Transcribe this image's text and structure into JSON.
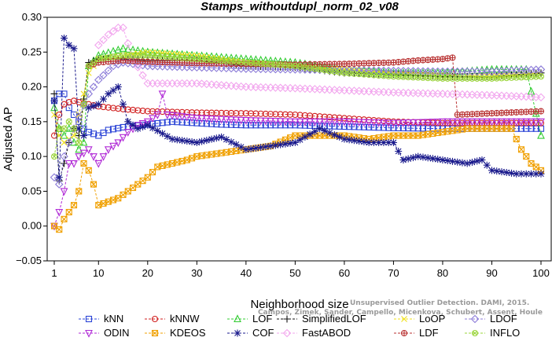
{
  "chart_data": {
    "type": "line",
    "title": "Stamps_withoutdupl_norm_02_v08",
    "xlabel": "Neighborhood size",
    "ylabel": "Adjusted AP",
    "xlim": [
      1,
      100
    ],
    "ylim": [
      -0.05,
      0.3
    ],
    "x_ticks": [
      1,
      10,
      20,
      30,
      40,
      50,
      60,
      70,
      80,
      90,
      100
    ],
    "y_ticks": [
      -0.05,
      0.0,
      0.05,
      0.1,
      0.15,
      0.2,
      0.25,
      0.3
    ],
    "y_tick_labels": [
      "−0.05",
      "0.00",
      "0.05",
      "0.10",
      "0.15",
      "0.20",
      "0.25",
      "0.30"
    ],
    "grid": false,
    "legend_position": "bottom",
    "watermark": [
      "Campos, Zimek, Sander, Campello, Micenkova, Schubert, Assent, Houle",
      "Unsupervised Outlier Detection. DAMI, 2015."
    ],
    "series": [
      {
        "name": "kNN",
        "color": "#2b44d6",
        "marker": "square",
        "points": [
          [
            1,
            0.18
          ],
          [
            2,
            0.19
          ],
          [
            3,
            0.19
          ],
          [
            4,
            0.17
          ],
          [
            5,
            0.16
          ],
          [
            6,
            0.15
          ],
          [
            7,
            0.14
          ],
          [
            8,
            0.135
          ],
          [
            10,
            0.13
          ],
          [
            12,
            0.138
          ],
          [
            15,
            0.142
          ],
          [
            20,
            0.146
          ],
          [
            25,
            0.15
          ],
          [
            30,
            0.148
          ],
          [
            35,
            0.146
          ],
          [
            40,
            0.145
          ],
          [
            50,
            0.145
          ],
          [
            60,
            0.143
          ],
          [
            70,
            0.141
          ],
          [
            80,
            0.14
          ],
          [
            90,
            0.14
          ],
          [
            100,
            0.14
          ]
        ]
      },
      {
        "name": "kNNW",
        "color": "#d11f1f",
        "marker": "circle",
        "points": [
          [
            1,
            0.13
          ],
          [
            2,
            0.16
          ],
          [
            3,
            0.175
          ],
          [
            4,
            0.178
          ],
          [
            5,
            0.18
          ],
          [
            6,
            0.178
          ],
          [
            8,
            0.175
          ],
          [
            10,
            0.172
          ],
          [
            15,
            0.168
          ],
          [
            20,
            0.165
          ],
          [
            30,
            0.163
          ],
          [
            40,
            0.162
          ],
          [
            50,
            0.16
          ],
          [
            60,
            0.155
          ],
          [
            70,
            0.15
          ],
          [
            80,
            0.148
          ],
          [
            90,
            0.148
          ],
          [
            100,
            0.148
          ]
        ]
      },
      {
        "name": "LOF",
        "color": "#33cc33",
        "marker": "triangle-up",
        "points": [
          [
            1,
            0.17
          ],
          [
            2,
            0.14
          ],
          [
            3,
            0.13
          ],
          [
            4,
            0.14
          ],
          [
            5,
            0.12
          ],
          [
            6,
            0.11
          ],
          [
            7,
            0.12
          ],
          [
            8,
            0.23
          ],
          [
            10,
            0.245
          ],
          [
            15,
            0.255
          ],
          [
            20,
            0.25
          ],
          [
            30,
            0.245
          ],
          [
            40,
            0.24
          ],
          [
            50,
            0.235
          ],
          [
            60,
            0.225
          ],
          [
            70,
            0.22
          ],
          [
            80,
            0.22
          ],
          [
            90,
            0.225
          ],
          [
            97,
            0.225
          ],
          [
            100,
            0.13
          ]
        ]
      },
      {
        "name": "SimplifiedLOF",
        "color": "#111111",
        "marker": "plus",
        "points": [
          [
            1,
            0.19
          ],
          [
            2,
            0.065
          ],
          [
            3,
            0.09
          ],
          [
            4,
            0.12
          ],
          [
            5,
            0.14
          ],
          [
            6,
            0.13
          ],
          [
            8,
            0.235
          ],
          [
            10,
            0.24
          ],
          [
            15,
            0.24
          ],
          [
            20,
            0.238
          ],
          [
            30,
            0.238
          ],
          [
            40,
            0.23
          ],
          [
            50,
            0.228
          ],
          [
            60,
            0.22
          ],
          [
            70,
            0.218
          ],
          [
            80,
            0.215
          ],
          [
            90,
            0.215
          ],
          [
            100,
            0.22
          ]
        ]
      },
      {
        "name": "LoOP",
        "color": "#f0e01a",
        "marker": "x",
        "points": [
          [
            1,
            0.16
          ],
          [
            2,
            0.13
          ],
          [
            3,
            0.12
          ],
          [
            5,
            0.13
          ],
          [
            8,
            0.22
          ],
          [
            10,
            0.24
          ],
          [
            15,
            0.245
          ],
          [
            20,
            0.25
          ],
          [
            30,
            0.245
          ],
          [
            40,
            0.235
          ],
          [
            50,
            0.23
          ],
          [
            60,
            0.225
          ],
          [
            70,
            0.22
          ],
          [
            80,
            0.218
          ],
          [
            90,
            0.215
          ],
          [
            100,
            0.22
          ]
        ]
      },
      {
        "name": "LDOF",
        "color": "#8c7cd8",
        "marker": "diamond",
        "points": [
          [
            1,
            0.07
          ],
          [
            2,
            0.06
          ],
          [
            3,
            0.1
          ],
          [
            5,
            0.14
          ],
          [
            8,
            0.19
          ],
          [
            10,
            0.21
          ],
          [
            13,
            0.23
          ],
          [
            15,
            0.235
          ],
          [
            20,
            0.23
          ],
          [
            30,
            0.228
          ],
          [
            40,
            0.226
          ],
          [
            50,
            0.225
          ],
          [
            60,
            0.224
          ],
          [
            70,
            0.223
          ],
          [
            80,
            0.222
          ],
          [
            90,
            0.222
          ],
          [
            100,
            0.225
          ]
        ]
      },
      {
        "name": "ODIN",
        "color": "#b02ad6",
        "marker": "triangle-down",
        "points": [
          [
            1,
            0.0
          ],
          [
            2,
            0.02
          ],
          [
            3,
            0.05
          ],
          [
            4,
            0.09
          ],
          [
            5,
            0.09
          ],
          [
            6,
            0.1
          ],
          [
            8,
            0.11
          ],
          [
            9,
            0.1
          ],
          [
            10,
            0.09
          ],
          [
            12,
            0.11
          ],
          [
            14,
            0.12
          ],
          [
            16,
            0.135
          ],
          [
            18,
            0.145
          ],
          [
            20,
            0.15
          ],
          [
            22,
            0.16
          ],
          [
            23,
            0.19
          ],
          [
            24,
            0.16
          ],
          [
            30,
            0.155
          ],
          [
            40,
            0.152
          ],
          [
            50,
            0.15
          ],
          [
            60,
            0.15
          ],
          [
            70,
            0.148
          ],
          [
            80,
            0.15
          ],
          [
            90,
            0.15
          ],
          [
            100,
            0.15
          ]
        ]
      },
      {
        "name": "KDEOS",
        "color": "#f0a000",
        "marker": "square-x",
        "points": [
          [
            1,
            0.0
          ],
          [
            2,
            -0.005
          ],
          [
            3,
            0.01
          ],
          [
            4,
            0.02
          ],
          [
            5,
            0.03
          ],
          [
            6,
            0.05
          ],
          [
            7,
            0.09
          ],
          [
            8,
            0.08
          ],
          [
            9,
            0.06
          ],
          [
            10,
            0.03
          ],
          [
            12,
            0.035
          ],
          [
            14,
            0.04
          ],
          [
            16,
            0.05
          ],
          [
            18,
            0.06
          ],
          [
            20,
            0.07
          ],
          [
            22,
            0.085
          ],
          [
            25,
            0.09
          ],
          [
            28,
            0.095
          ],
          [
            30,
            0.1
          ],
          [
            35,
            0.105
          ],
          [
            40,
            0.11
          ],
          [
            45,
            0.115
          ],
          [
            50,
            0.13
          ],
          [
            55,
            0.13
          ],
          [
            60,
            0.13
          ],
          [
            65,
            0.125
          ],
          [
            70,
            0.13
          ],
          [
            75,
            0.13
          ],
          [
            80,
            0.135
          ],
          [
            85,
            0.14
          ],
          [
            90,
            0.14
          ],
          [
            94,
            0.14
          ],
          [
            96,
            0.11
          ],
          [
            98,
            0.09
          ],
          [
            100,
            0.08
          ]
        ]
      },
      {
        "name": "COF",
        "color": "#1a1a8c",
        "marker": "star",
        "points": [
          [
            1,
            0.18
          ],
          [
            2,
            0.07
          ],
          [
            3,
            0.27
          ],
          [
            4,
            0.26
          ],
          [
            5,
            0.255
          ],
          [
            6,
            0.14
          ],
          [
            7,
            0.13
          ],
          [
            8,
            0.17
          ],
          [
            10,
            0.175
          ],
          [
            12,
            0.19
          ],
          [
            14,
            0.2
          ],
          [
            16,
            0.15
          ],
          [
            18,
            0.14
          ],
          [
            20,
            0.145
          ],
          [
            25,
            0.125
          ],
          [
            30,
            0.12
          ],
          [
            35,
            0.128
          ],
          [
            40,
            0.11
          ],
          [
            45,
            0.115
          ],
          [
            50,
            0.12
          ],
          [
            55,
            0.14
          ],
          [
            60,
            0.125
          ],
          [
            65,
            0.12
          ],
          [
            70,
            0.12
          ],
          [
            72,
            0.095
          ],
          [
            75,
            0.1
          ],
          [
            80,
            0.095
          ],
          [
            85,
            0.09
          ],
          [
            88,
            0.095
          ],
          [
            90,
            0.08
          ],
          [
            95,
            0.075
          ],
          [
            100,
            0.075
          ]
        ]
      },
      {
        "name": "FastABOD",
        "color": "#f2a6ee",
        "marker": "diamond",
        "points": [
          [
            10,
            0.26
          ],
          [
            12,
            0.275
          ],
          [
            14,
            0.285
          ],
          [
            15,
            0.285
          ],
          [
            17,
            0.24
          ],
          [
            20,
            0.205
          ],
          [
            30,
            0.205
          ],
          [
            40,
            0.2
          ],
          [
            50,
            0.198
          ],
          [
            60,
            0.195
          ],
          [
            70,
            0.192
          ],
          [
            80,
            0.19
          ],
          [
            90,
            0.188
          ],
          [
            100,
            0.185
          ]
        ]
      },
      {
        "name": "LDF",
        "color": "#b83030",
        "marker": "circle-plus",
        "points": [
          [
            8,
            0.23
          ],
          [
            10,
            0.235
          ],
          [
            15,
            0.238
          ],
          [
            20,
            0.236
          ],
          [
            30,
            0.234
          ],
          [
            40,
            0.233
          ],
          [
            50,
            0.232
          ],
          [
            60,
            0.233
          ],
          [
            70,
            0.235
          ],
          [
            75,
            0.238
          ],
          [
            80,
            0.24
          ],
          [
            82,
            0.242
          ],
          [
            83,
            0.16
          ],
          [
            90,
            0.162
          ],
          [
            100,
            0.165
          ]
        ]
      },
      {
        "name": "INFLO",
        "color": "#9ad43a",
        "marker": "circle-x",
        "points": [
          [
            1,
            0.1
          ],
          [
            2,
            0.14
          ],
          [
            3,
            0.14
          ],
          [
            4,
            0.15
          ],
          [
            5,
            0.14
          ],
          [
            6,
            0.12
          ],
          [
            8,
            0.23
          ],
          [
            10,
            0.24
          ],
          [
            15,
            0.245
          ],
          [
            20,
            0.245
          ],
          [
            30,
            0.24
          ],
          [
            40,
            0.235
          ],
          [
            50,
            0.23
          ],
          [
            60,
            0.22
          ],
          [
            70,
            0.215
          ],
          [
            80,
            0.212
          ],
          [
            90,
            0.212
          ],
          [
            100,
            0.215
          ]
        ]
      }
    ]
  }
}
